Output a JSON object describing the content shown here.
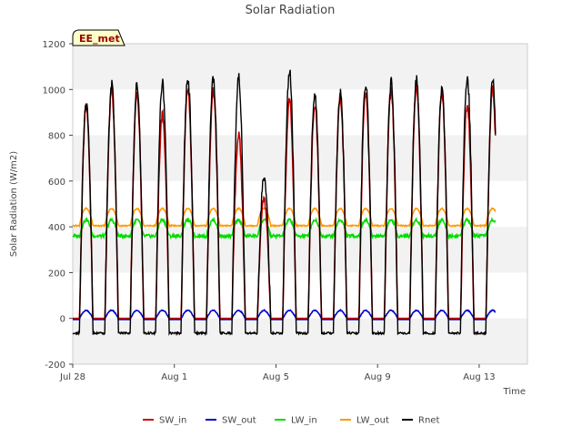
{
  "chart_data": {
    "type": "line",
    "title": "Solar Radiation",
    "badge": "EE_met",
    "xlabel": "Time",
    "ylabel": "Solar Radiation (W/m2)",
    "xlim": [
      0,
      17.9
    ],
    "ylim": [
      -200,
      1200
    ],
    "x_unit": "days since Jul 28",
    "y_ticks": [
      -200,
      0,
      200,
      400,
      600,
      800,
      1000,
      1200
    ],
    "x_ticks": [
      {
        "day": 0,
        "label": "Jul 28"
      },
      {
        "day": 4,
        "label": "Aug 1"
      },
      {
        "day": 8,
        "label": "Aug 5"
      },
      {
        "day": 12,
        "label": "Aug 9"
      },
      {
        "day": 16,
        "label": "Aug 13"
      }
    ],
    "grid": "horizontal bands",
    "legend_position": "bottom",
    "days": 17,
    "daily_peaks": {
      "SW_in": [
        930,
        1000,
        980,
        890,
        1000,
        1000,
        800,
        520,
        950,
        930,
        970,
        980,
        1000,
        1010,
        990,
        940,
        1000
      ],
      "Rnet": [
        930,
        1020,
        1020,
        1030,
        1050,
        1050,
        1050,
        620,
        1080,
        980,
        980,
        1030,
        1030,
        1040,
        1000,
        1050,
        1040
      ]
    },
    "series": [
      {
        "name": "SW_in",
        "color": "#cc0000",
        "day_peak": "daily",
        "night": 0,
        "day_base": 0
      },
      {
        "name": "SW_out",
        "color": "#0000cc",
        "day_peak": 35,
        "night": -5,
        "day_base": 0
      },
      {
        "name": "LW_in",
        "color": "#00dd00",
        "day_peak": 430,
        "night": 360,
        "day_base": 0
      },
      {
        "name": "LW_out",
        "color": "#ff9900",
        "day_peak": 480,
        "night": 415,
        "day_base": 0
      },
      {
        "name": "Rnet",
        "color": "#000000",
        "day_peak": "daily",
        "night": -60,
        "day_base": 0
      }
    ]
  }
}
